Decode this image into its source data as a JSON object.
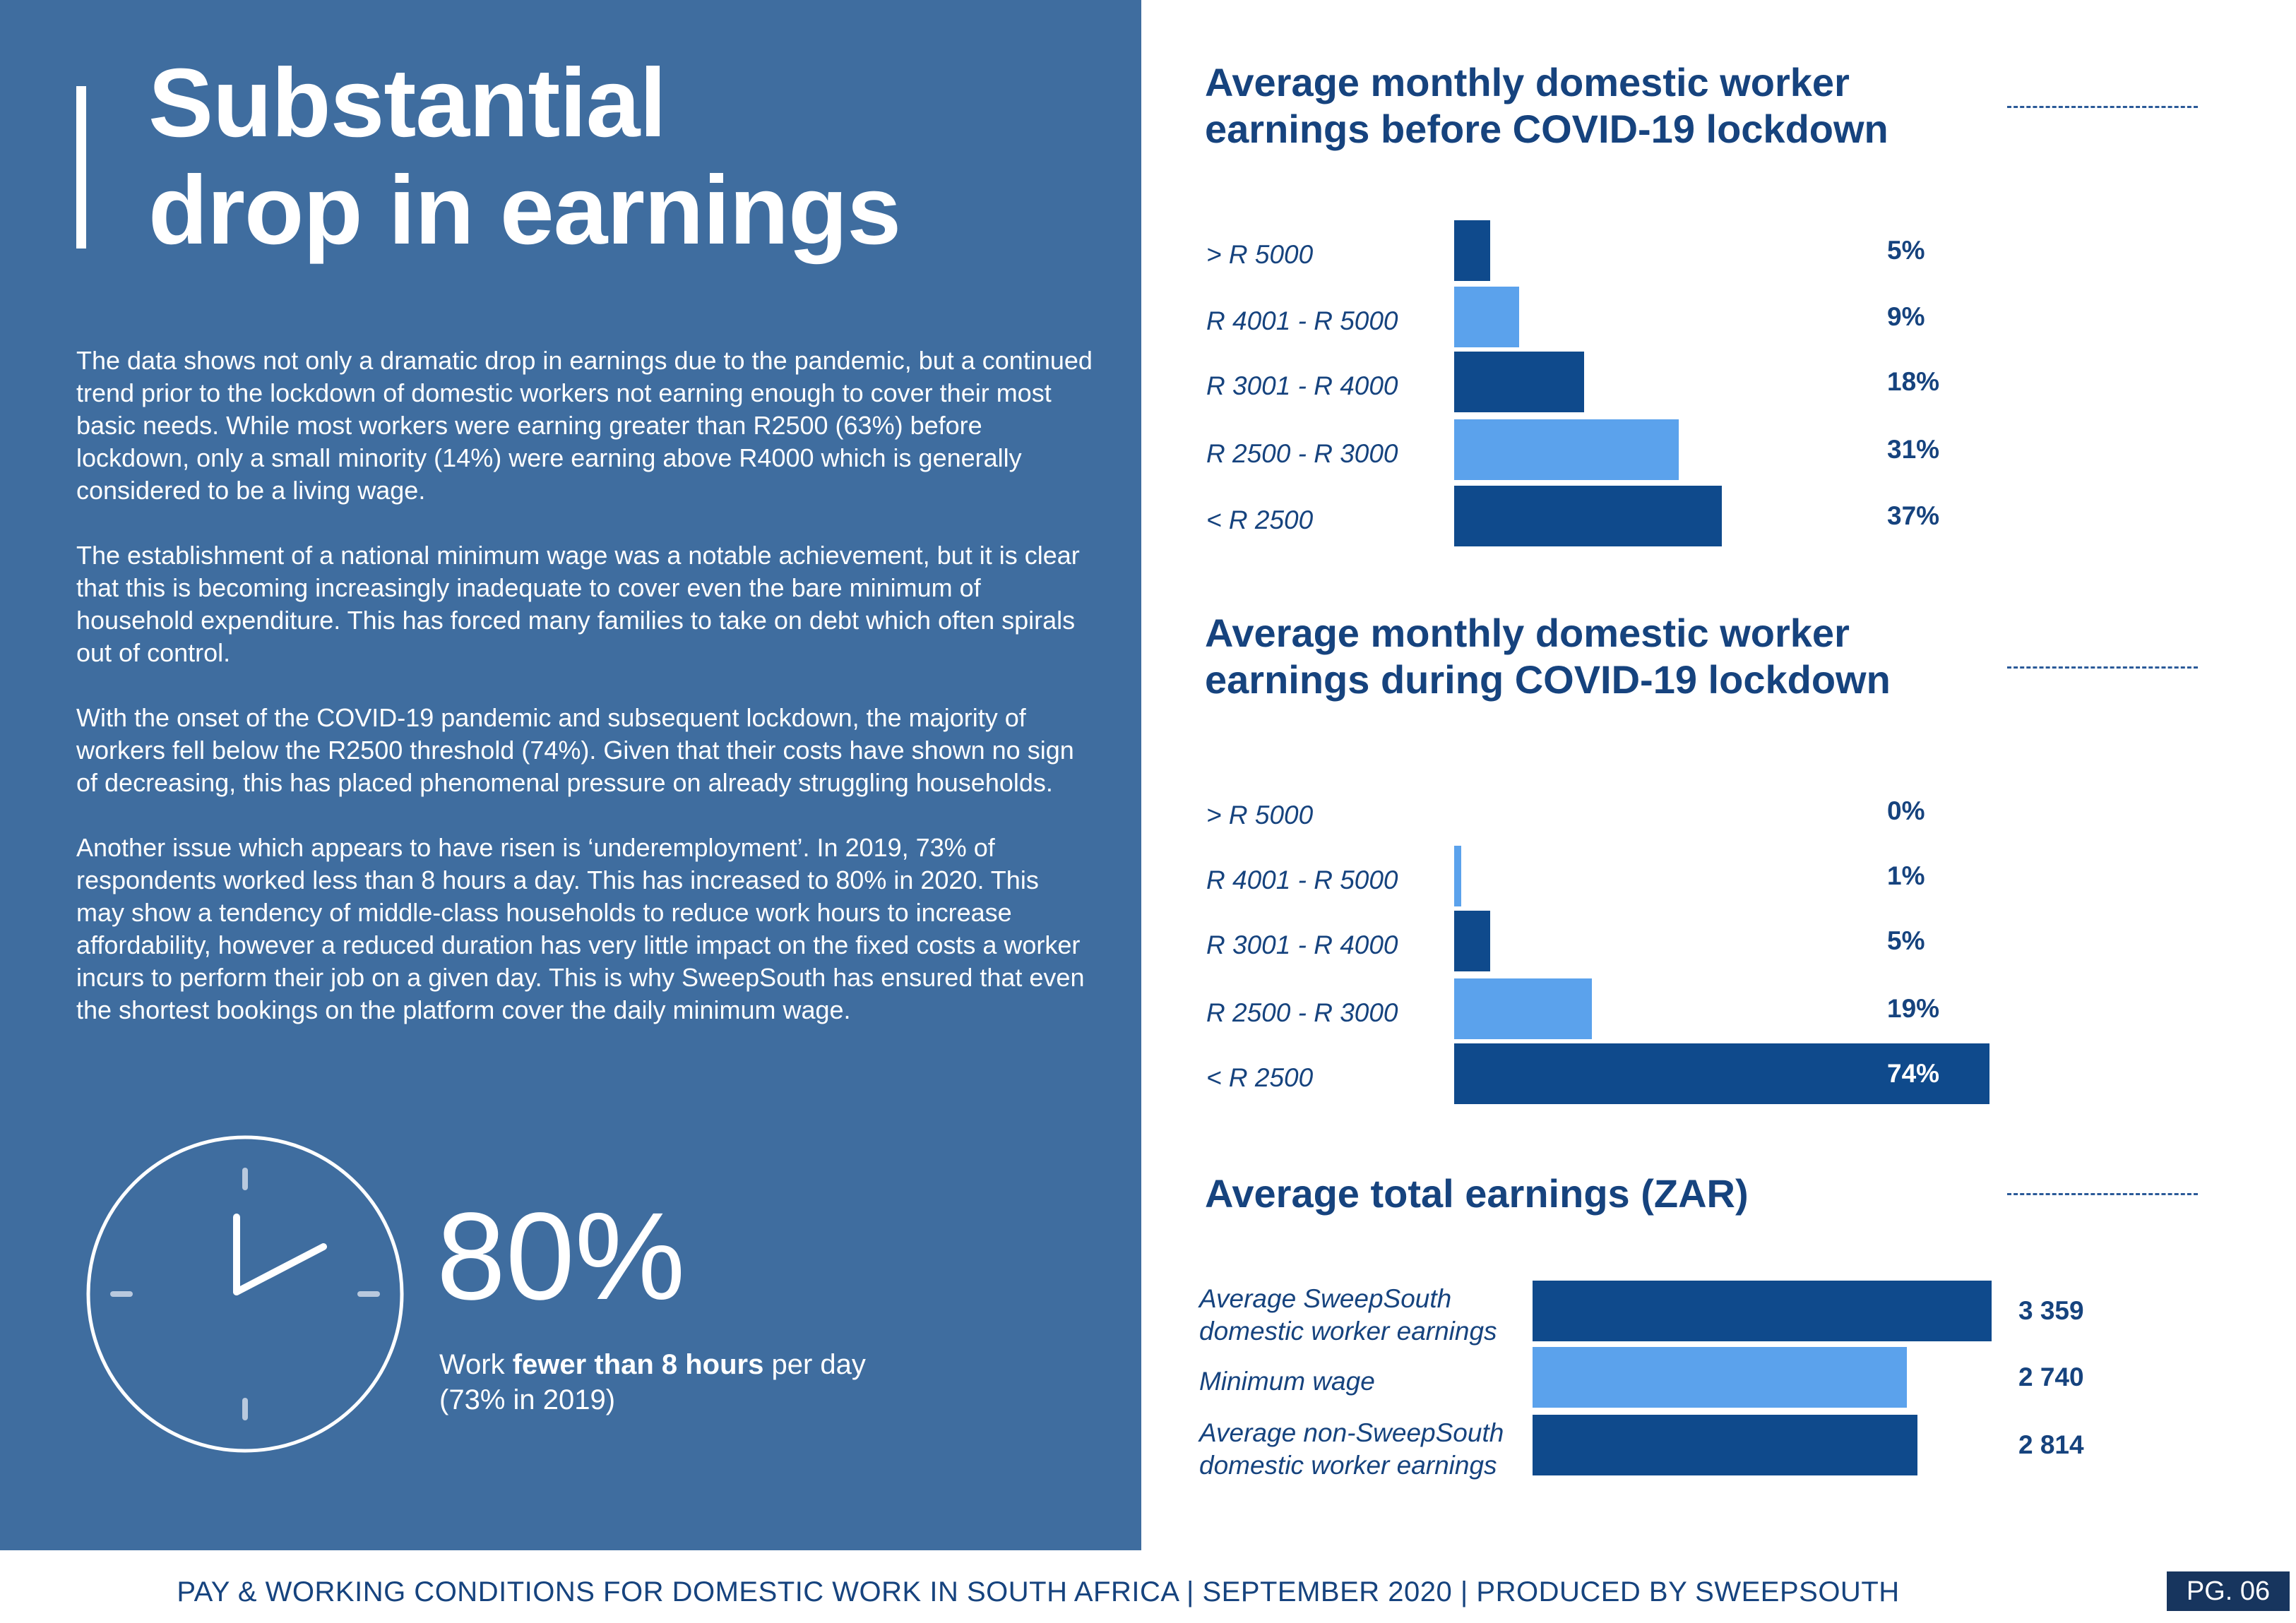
{
  "page": {
    "title_line1": "Substantial",
    "title_line2": "drop in earnings",
    "paragraphs": [
      "The data shows not only a dramatic drop in earnings due to the pandemic, but a continued trend prior to the lockdown of domestic workers not earning enough to cover their most basic needs. While most workers were earning greater than R2500 (63%) before lockdown, only a small minority (14%) were earning above R4000 which is generally considered to be a living wage.",
      "The establishment of a national minimum wage was a notable achievement, but it is clear that this is becoming increasingly inadequate to cover even the bare minimum of household expenditure. This has forced many families to take on debt which often spirals out of control.",
      "With the onset of the COVID-19 pandemic and subsequent lockdown, the majority of workers fell below the R2500 threshold (74%). Given that their costs have shown no sign of decreasing, this has placed phenomenal pressure on already struggling households.",
      "Another issue which appears to have risen is ‘underemployment’. In 2019, 73% of respondents worked less than 8 hours a day. This has increased to 80% in 2020. This may show a tendency of middle-class households to reduce work hours to increase affordability, however a reduced duration has very little impact on the fixed costs a worker incurs to perform their job on a given day. This is why SweepSouth has ensured that even the shortest bookings on the platform cover the daily minimum wage."
    ],
    "stat": {
      "value": "80%",
      "caption_prefix": "Work ",
      "caption_bold": "fewer than 8 hours",
      "caption_suffix": " per day",
      "caption_line2": "(73% in 2019)",
      "icon": "clock-icon"
    },
    "footer": "PAY & WORKING CONDITIONS FOR DOMESTIC WORK IN SOUTH AFRICA  |  SEPTEMBER 2020 | PRODUCED BY SWEEPSOUTH",
    "page_number": "PG. 06"
  },
  "colors": {
    "panel": "#3f6d9f",
    "dark_bar": "#0f4a8c",
    "light_bar": "#5ba2ec",
    "text_blue": "#16437e",
    "white": "#ffffff"
  },
  "chart_data": [
    {
      "type": "bar",
      "orientation": "horizontal",
      "title_line1": "Average monthly domestic worker",
      "title_line2": "earnings before COVID-19 lockdown",
      "categories": [
        "> R 5000",
        "R 4001 - R 5000",
        "R 3001 - R 4000",
        "R 2500 - R 3000",
        "< R 2500"
      ],
      "values": [
        5,
        9,
        18,
        31,
        37
      ],
      "value_labels": [
        "5%",
        "9%",
        "18%",
        "31%",
        "37%"
      ],
      "unit": "%",
      "xlim": [
        0,
        74
      ]
    },
    {
      "type": "bar",
      "orientation": "horizontal",
      "title_line1": "Average monthly domestic worker",
      "title_line2": "earnings during COVID-19 lockdown",
      "categories": [
        "> R 5000",
        "R 4001 - R 5000",
        "R 3001 - R 4000",
        "R 2500 - R 3000",
        "< R 2500"
      ],
      "values": [
        0,
        1,
        5,
        19,
        74
      ],
      "value_labels": [
        "0%",
        "1%",
        "5%",
        "19%",
        "74%"
      ],
      "unit": "%",
      "xlim": [
        0,
        74
      ]
    },
    {
      "type": "bar",
      "orientation": "horizontal",
      "title_line1": "Average total earnings (ZAR)",
      "categories": [
        [
          "Average SweepSouth",
          "domestic worker earnings"
        ],
        [
          "Minimum wage"
        ],
        [
          "Average non-SweepSouth",
          "domestic worker earnings"
        ]
      ],
      "values": [
        3359,
        2740,
        2814
      ],
      "value_labels": [
        "3 359",
        "2 740",
        "2 814"
      ],
      "xlim": [
        0,
        3359
      ]
    }
  ]
}
